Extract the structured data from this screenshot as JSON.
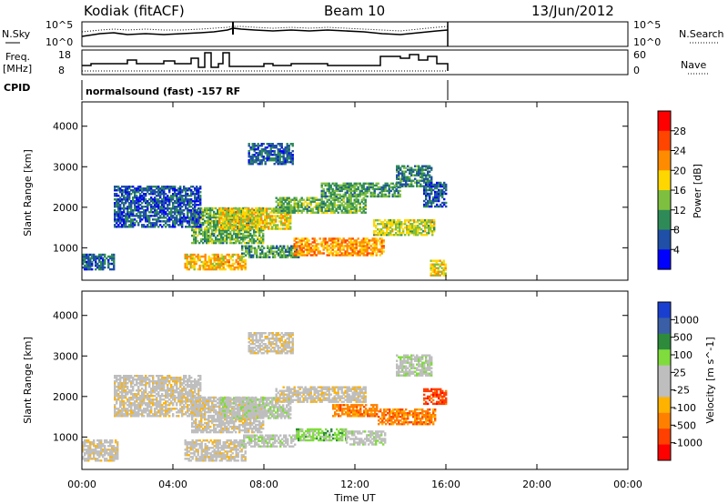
{
  "header": {
    "station": "Kodiak (fitACF)",
    "beam": "Beam 10",
    "date": "13/Jun/2012"
  },
  "strip": {
    "nsky_label": "N.Sky",
    "nsearch_label": "N.Search",
    "freq_label_1": "Freq.",
    "freq_label_2": "[MHz]",
    "nave_label": "Nave",
    "cpid_label": "CPID",
    "cpid_text": "normalsound (fast) -157 RF",
    "noise_ticks_left": [
      "10^5",
      "10^0"
    ],
    "noise_ticks_right": [
      "10^5",
      "10^0"
    ],
    "freq_ticks": [
      "18",
      "8"
    ],
    "nave_ticks": [
      "60",
      "0"
    ]
  },
  "colors": {
    "power_scale": [
      "#0000ff",
      "#1f4fa6",
      "#2e8b57",
      "#7fbf3f",
      "#ffd700",
      "#ff8c00",
      "#ff4500",
      "#ff0000"
    ],
    "velocity_scale": [
      "#ff0000",
      "#ff4000",
      "#ff8000",
      "#ffb300",
      "#bebebe",
      "#bebebe",
      "#7fdc3c",
      "#2e8b3c",
      "#3a5fa6",
      "#1a3fd0"
    ]
  },
  "chart_data": [
    {
      "type": "heatmap",
      "name": "power",
      "ylabel": "Slant Range [km]",
      "xlabel": "",
      "xlim": [
        0,
        24
      ],
      "ylim": [
        200,
        4600
      ],
      "x_ticks": [
        "00:00",
        "04:00",
        "08:00",
        "12:00",
        "16:00",
        "20:00",
        "00:00"
      ],
      "y_ticks": [
        1000,
        2000,
        3000,
        4000
      ],
      "data_end_hour": 16,
      "colorbar": {
        "label": "Power [dB]",
        "ticks": [
          "28",
          "24",
          "20",
          "16",
          "12",
          "8",
          "4"
        ],
        "range": [
          0,
          32
        ]
      },
      "regions": [
        {
          "t0": 0.0,
          "t1": 1.4,
          "r0": 450,
          "r1": 850,
          "level": 6
        },
        {
          "t0": 4.5,
          "t1": 7.2,
          "r0": 450,
          "r1": 850,
          "level": 20
        },
        {
          "t0": 7.0,
          "t1": 9.5,
          "r0": 750,
          "r1": 1050,
          "level": 10
        },
        {
          "t0": 9.3,
          "t1": 13.3,
          "r0": 800,
          "r1": 1250,
          "level": 22
        },
        {
          "t0": 4.8,
          "t1": 8.0,
          "r0": 1100,
          "r1": 2000,
          "level": 12
        },
        {
          "t0": 6.0,
          "t1": 9.2,
          "r0": 1450,
          "r1": 1950,
          "level": 18
        },
        {
          "t0": 8.5,
          "t1": 12.5,
          "r0": 1850,
          "r1": 2250,
          "level": 12
        },
        {
          "t0": 10.5,
          "t1": 14.0,
          "r0": 2250,
          "r1": 2600,
          "level": 10
        },
        {
          "t0": 12.8,
          "t1": 15.5,
          "r0": 1300,
          "r1": 1700,
          "level": 16
        },
        {
          "t0": 1.4,
          "t1": 5.2,
          "r0": 1500,
          "r1": 2500,
          "level": 5
        },
        {
          "t0": 7.3,
          "t1": 9.3,
          "r0": 3050,
          "r1": 3550,
          "level": 6
        },
        {
          "t0": 13.8,
          "t1": 15.4,
          "r0": 2500,
          "r1": 3000,
          "level": 8
        },
        {
          "t0": 15.0,
          "t1": 16.0,
          "r0": 2000,
          "r1": 2600,
          "level": 5
        },
        {
          "t0": 15.3,
          "t1": 16.0,
          "r0": 300,
          "r1": 700,
          "level": 18
        }
      ]
    },
    {
      "type": "heatmap",
      "name": "velocity",
      "ylabel": "Slant Range [km]",
      "xlabel": "Time UT",
      "xlim": [
        0,
        24
      ],
      "ylim": [
        200,
        4600
      ],
      "x_ticks": [
        "00:00",
        "04:00",
        "08:00",
        "12:00",
        "16:00",
        "20:00",
        "00:00"
      ],
      "y_ticks": [
        1000,
        2000,
        3000,
        4000
      ],
      "data_end_hour": 16,
      "colorbar": {
        "label": "Velocity [m s^-1]",
        "ticks": [
          "1000",
          "500",
          "100",
          "25",
          "-25",
          "-100",
          "-500",
          "-1000"
        ]
      },
      "regions": [
        {
          "t0": 0.0,
          "t1": 1.6,
          "r0": 400,
          "r1": 900,
          "level": 4
        },
        {
          "t0": 4.5,
          "t1": 7.2,
          "r0": 400,
          "r1": 900,
          "level": 4
        },
        {
          "t0": 7.0,
          "t1": 9.4,
          "r0": 750,
          "r1": 1050,
          "level": 5
        },
        {
          "t0": 9.4,
          "t1": 11.6,
          "r0": 900,
          "r1": 1200,
          "level": 6
        },
        {
          "t0": 11.6,
          "t1": 13.3,
          "r0": 800,
          "r1": 1150,
          "level": 5
        },
        {
          "t0": 4.8,
          "t1": 8.0,
          "r0": 1100,
          "r1": 2000,
          "level": 4
        },
        {
          "t0": 6.0,
          "t1": 9.2,
          "r0": 1450,
          "r1": 1950,
          "level": 5
        },
        {
          "t0": 8.5,
          "t1": 12.5,
          "r0": 1850,
          "r1": 2250,
          "level": 4
        },
        {
          "t0": 11.0,
          "t1": 13.0,
          "r0": 1500,
          "r1": 1800,
          "level": 2
        },
        {
          "t0": 13.0,
          "t1": 15.5,
          "r0": 1300,
          "r1": 1700,
          "level": 2
        },
        {
          "t0": 1.4,
          "t1": 5.2,
          "r0": 1500,
          "r1": 2500,
          "level": 4
        },
        {
          "t0": 7.3,
          "t1": 9.3,
          "r0": 3050,
          "r1": 3550,
          "level": 4
        },
        {
          "t0": 13.8,
          "t1": 15.4,
          "r0": 2500,
          "r1": 3000,
          "level": 5
        },
        {
          "t0": 15.0,
          "t1": 16.0,
          "r0": 1800,
          "r1": 2200,
          "level": 1
        }
      ]
    }
  ]
}
